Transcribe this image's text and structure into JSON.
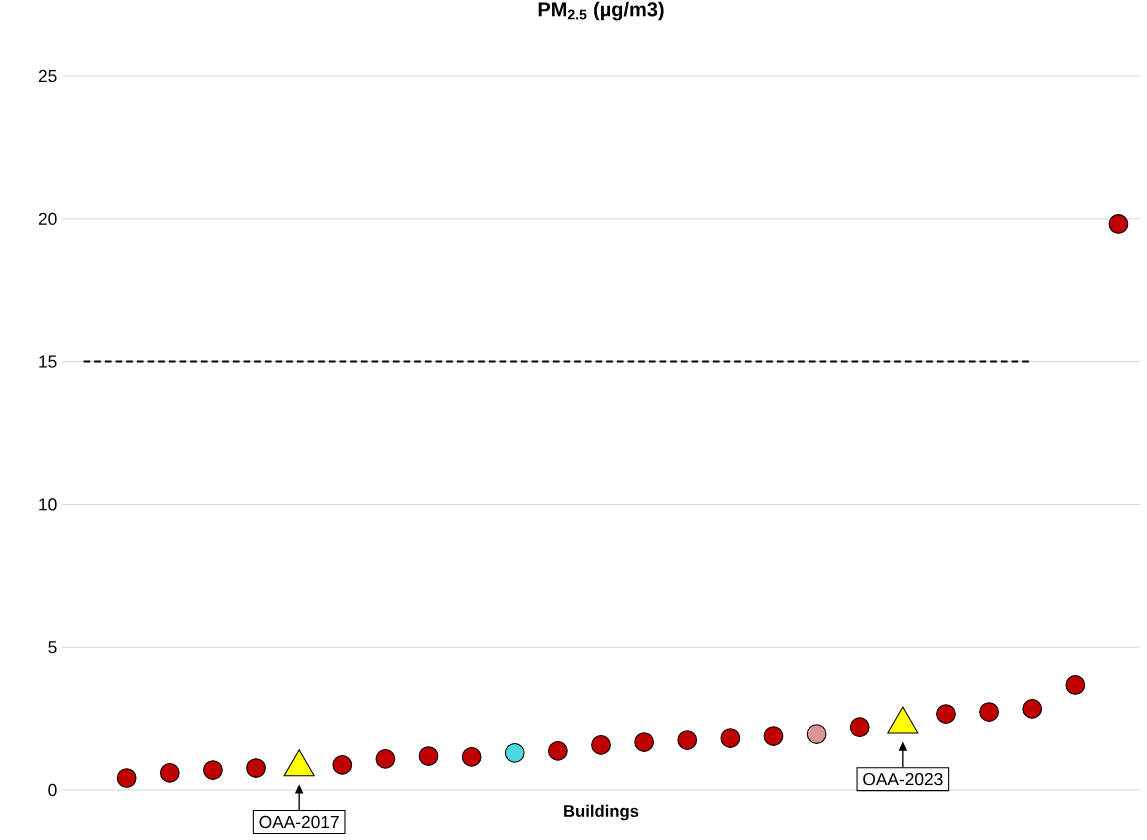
{
  "chart_data": {
    "type": "scatter",
    "title": "PM$_{2.5}$ (µg/m3)",
    "xlabel": "Buildings",
    "categories": [
      null,
      null,
      null,
      null,
      null,
      null,
      null,
      null,
      null,
      null,
      null,
      null,
      null,
      null,
      null,
      null,
      null,
      null,
      null,
      null,
      null,
      null,
      null,
      null,
      null
    ],
    "series": [
      {
        "color": "#c00000",
        "marker": "circle",
        "values": [
          null,
          0.42,
          0.6,
          0.7,
          0.77,
          null,
          0.88,
          1.09,
          1.19,
          1.16,
          null,
          1.37,
          1.58,
          1.68,
          1.75,
          1.82,
          1.89,
          null,
          2.2,
          null,
          2.66,
          2.73,
          2.84,
          3.68,
          19.82
        ]
      },
      {
        "color": "#4dd9e0",
        "marker": "circle",
        "values": [
          null,
          null,
          null,
          null,
          null,
          null,
          null,
          null,
          null,
          null,
          1.3,
          null,
          null,
          null,
          null,
          null,
          null,
          null,
          null,
          null,
          null,
          null,
          null,
          null,
          null
        ]
      },
      {
        "color": "#d99694",
        "marker": "circle",
        "values": [
          null,
          null,
          null,
          null,
          null,
          null,
          null,
          null,
          null,
          null,
          null,
          null,
          null,
          null,
          null,
          null,
          null,
          1.96,
          null,
          null,
          null,
          null,
          null,
          null,
          null
        ]
      },
      {
        "color": "#ffff00",
        "marker": "triangle",
        "values": [
          null,
          null,
          null,
          null,
          null,
          0.8,
          null,
          null,
          null,
          null,
          null,
          null,
          null,
          null,
          null,
          null,
          null,
          null,
          null,
          2.3,
          null,
          null,
          null,
          null,
          null
        ]
      }
    ],
    "annotations": [
      "OAA-2017",
      "OAA-2023"
    ],
    "ref_lines": [
      {
        "axis": "y",
        "value": 15,
        "color": "#000000",
        "line_style": "dashed"
      }
    ],
    "ylim": [
      0,
      25
    ],
    "yticks": [
      0,
      5,
      10,
      15,
      20,
      25
    ],
    "grid": "y"
  }
}
